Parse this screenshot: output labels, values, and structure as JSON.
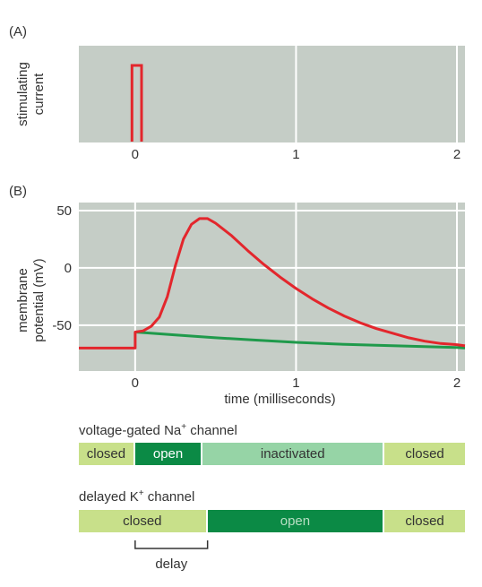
{
  "panel_a": {
    "tag": "(A)"
  },
  "panel_b": {
    "tag": "(B)"
  },
  "chart_data": [
    {
      "type": "line",
      "panel": "A",
      "ylabel": "stimulating current",
      "xlim": [
        -0.35,
        2.05
      ],
      "ticks": [
        "0",
        "1",
        "2"
      ],
      "tick_values": [
        0,
        1,
        2
      ],
      "grid": true,
      "series": [
        {
          "x": [
            -0.02,
            -0.02,
            0.04,
            0.04
          ],
          "y": [
            0,
            1,
            1,
            0
          ],
          "color": "#e3262c"
        }
      ]
    },
    {
      "type": "line",
      "panel": "B",
      "xlabel": "time (milliseconds)",
      "ylabel": "membrane potential (mV)",
      "xlim": [
        -0.35,
        2.05
      ],
      "ylim": [
        -90,
        57
      ],
      "xticks": [
        "0",
        "1",
        "2"
      ],
      "xtick_values": [
        0,
        1,
        2
      ],
      "yticks": [
        "50",
        "0",
        "-50"
      ],
      "ytick_values": [
        50,
        0,
        -50
      ],
      "grid": true,
      "series": [
        {
          "color": "#e3262c",
          "x": [
            -0.35,
            0.0,
            0.0,
            0.05,
            0.1,
            0.15,
            0.2,
            0.25,
            0.3,
            0.35,
            0.4,
            0.45,
            0.5,
            0.6,
            0.7,
            0.8,
            0.9,
            1.0,
            1.1,
            1.2,
            1.3,
            1.4,
            1.5,
            1.6,
            1.7,
            1.8,
            1.9,
            2.0,
            2.05
          ],
          "y": [
            -70,
            -70,
            -56,
            -55,
            -51,
            -43,
            -25,
            2,
            25,
            38,
            43,
            43,
            39,
            28,
            15,
            3,
            -8,
            -18,
            -27,
            -35,
            -42,
            -48,
            -53,
            -57,
            -61,
            -64,
            -66,
            -67,
            -68
          ]
        },
        {
          "color": "#1f9a4b",
          "x": [
            0.0,
            0.25,
            0.5,
            0.75,
            1.0,
            1.25,
            1.5,
            1.75,
            2.0,
            2.05
          ],
          "y": [
            -56,
            -58.5,
            -61,
            -63,
            -65,
            -66.5,
            -67.5,
            -68.5,
            -69.5,
            -70
          ]
        }
      ]
    }
  ],
  "na_channel": {
    "title": "voltage-gated Na",
    "ion_sup": "+",
    "title_suffix": " channel",
    "segments": [
      {
        "label": "closed",
        "start": -0.35,
        "end": 0.0,
        "color": "#c8e08a",
        "text_color": "#333333"
      },
      {
        "label": "open",
        "start": 0.0,
        "end": 0.42,
        "color": "#0b8a45",
        "text_color": "#ffffff"
      },
      {
        "label": "inactivated",
        "start": 0.42,
        "end": 1.55,
        "color": "#96d4a6",
        "text_color": "#333333"
      },
      {
        "label": "closed",
        "start": 1.55,
        "end": 2.05,
        "color": "#c8e08a",
        "text_color": "#333333"
      }
    ]
  },
  "k_channel": {
    "title": "delayed K",
    "ion_sup": "+",
    "title_suffix": " channel",
    "segments": [
      {
        "label": "closed",
        "start": -0.35,
        "end": 0.45,
        "color": "#c8e08a",
        "text_color": "#333333"
      },
      {
        "label": "open",
        "start": 0.45,
        "end": 1.55,
        "color": "#0b8a45",
        "text_color": "#b8dfc4"
      },
      {
        "label": "closed",
        "start": 1.55,
        "end": 2.05,
        "color": "#c8e08a",
        "text_color": "#333333"
      }
    ]
  },
  "delay": {
    "label": "delay",
    "start": 0.0,
    "end": 0.45
  }
}
